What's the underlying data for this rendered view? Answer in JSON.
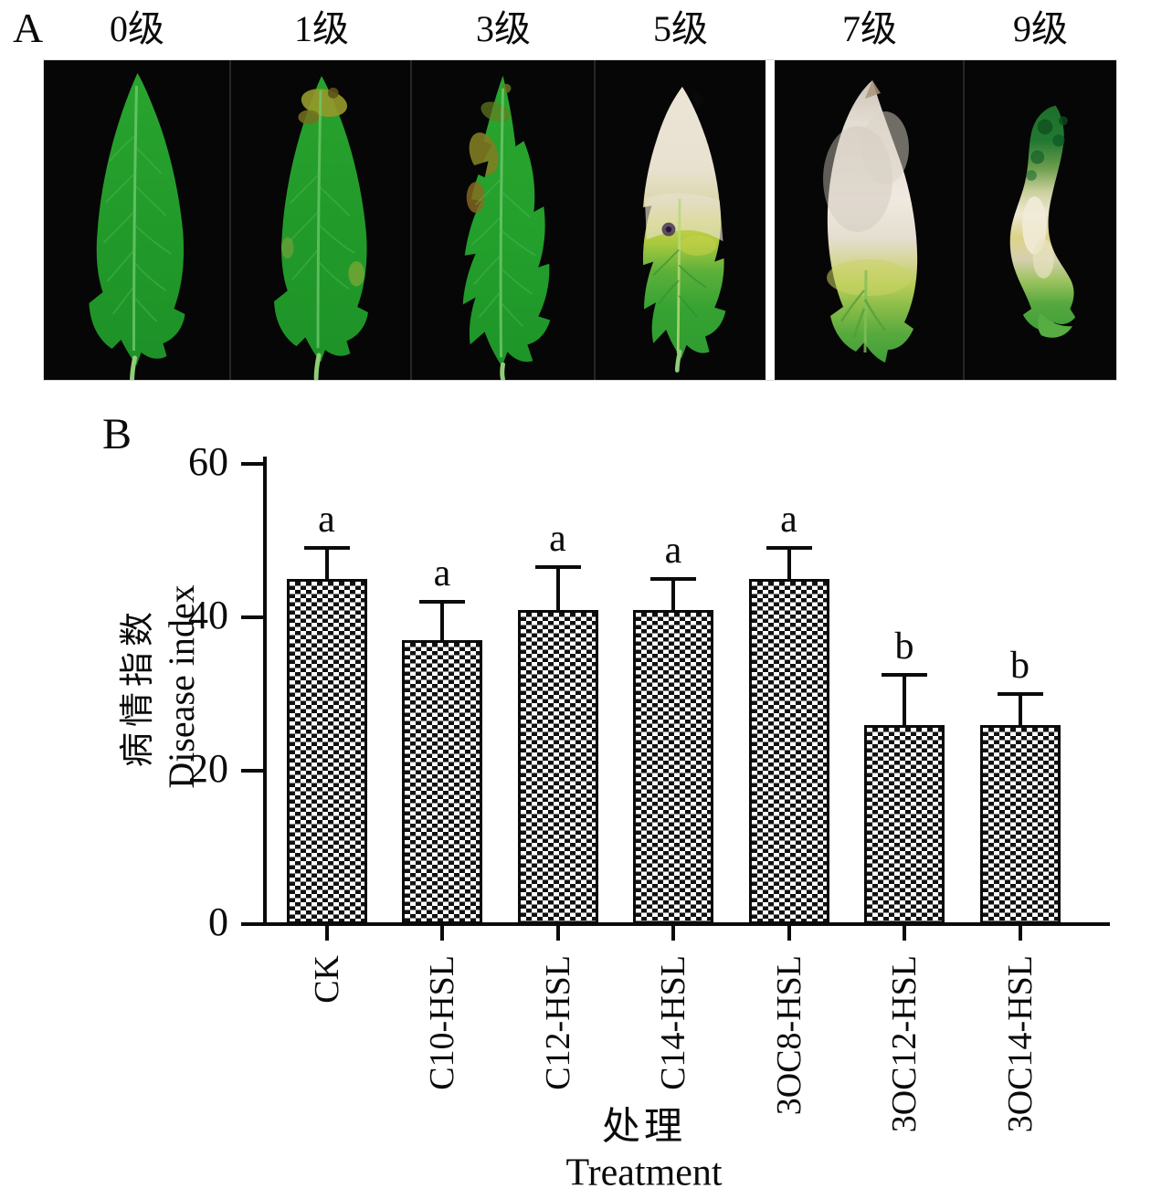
{
  "panel_a": {
    "label": "A",
    "grades": [
      "0级",
      "1级",
      "3级",
      "5级",
      "7级",
      "9级"
    ]
  },
  "panel_b": {
    "label": "B"
  },
  "chart_data": {
    "type": "bar",
    "title": "",
    "categories": [
      "CK",
      "C10-HSL",
      "C12-HSL",
      "C14-HSL",
      "3OC8-HSL",
      "3OC12-HSL",
      "3OC14-HSL"
    ],
    "values": [
      45,
      37,
      41,
      41,
      45,
      26,
      26
    ],
    "errors": [
      4,
      5,
      5.5,
      4,
      4,
      6.5,
      4
    ],
    "sig_letters": [
      "a",
      "a",
      "a",
      "a",
      "a",
      "b",
      "b"
    ],
    "ylabel_cn": "病情指数",
    "ylabel_en": "Disease index",
    "xlabel_cn": "处理",
    "xlabel_en": "Treatment",
    "ylim": [
      0,
      60
    ],
    "yticks": [
      0,
      20,
      40,
      60
    ],
    "grid": false,
    "legend": "none",
    "bar_fill": "black-white-checkerboard",
    "bar_color": "#111111",
    "axis_color": "#0b0b0b"
  },
  "colors": {
    "photo_background": "#060606",
    "healthy_leaf_green": "#2aa12e",
    "diseased_white": "#ece5d7",
    "chlorotic_yellow": "#ccd149"
  }
}
